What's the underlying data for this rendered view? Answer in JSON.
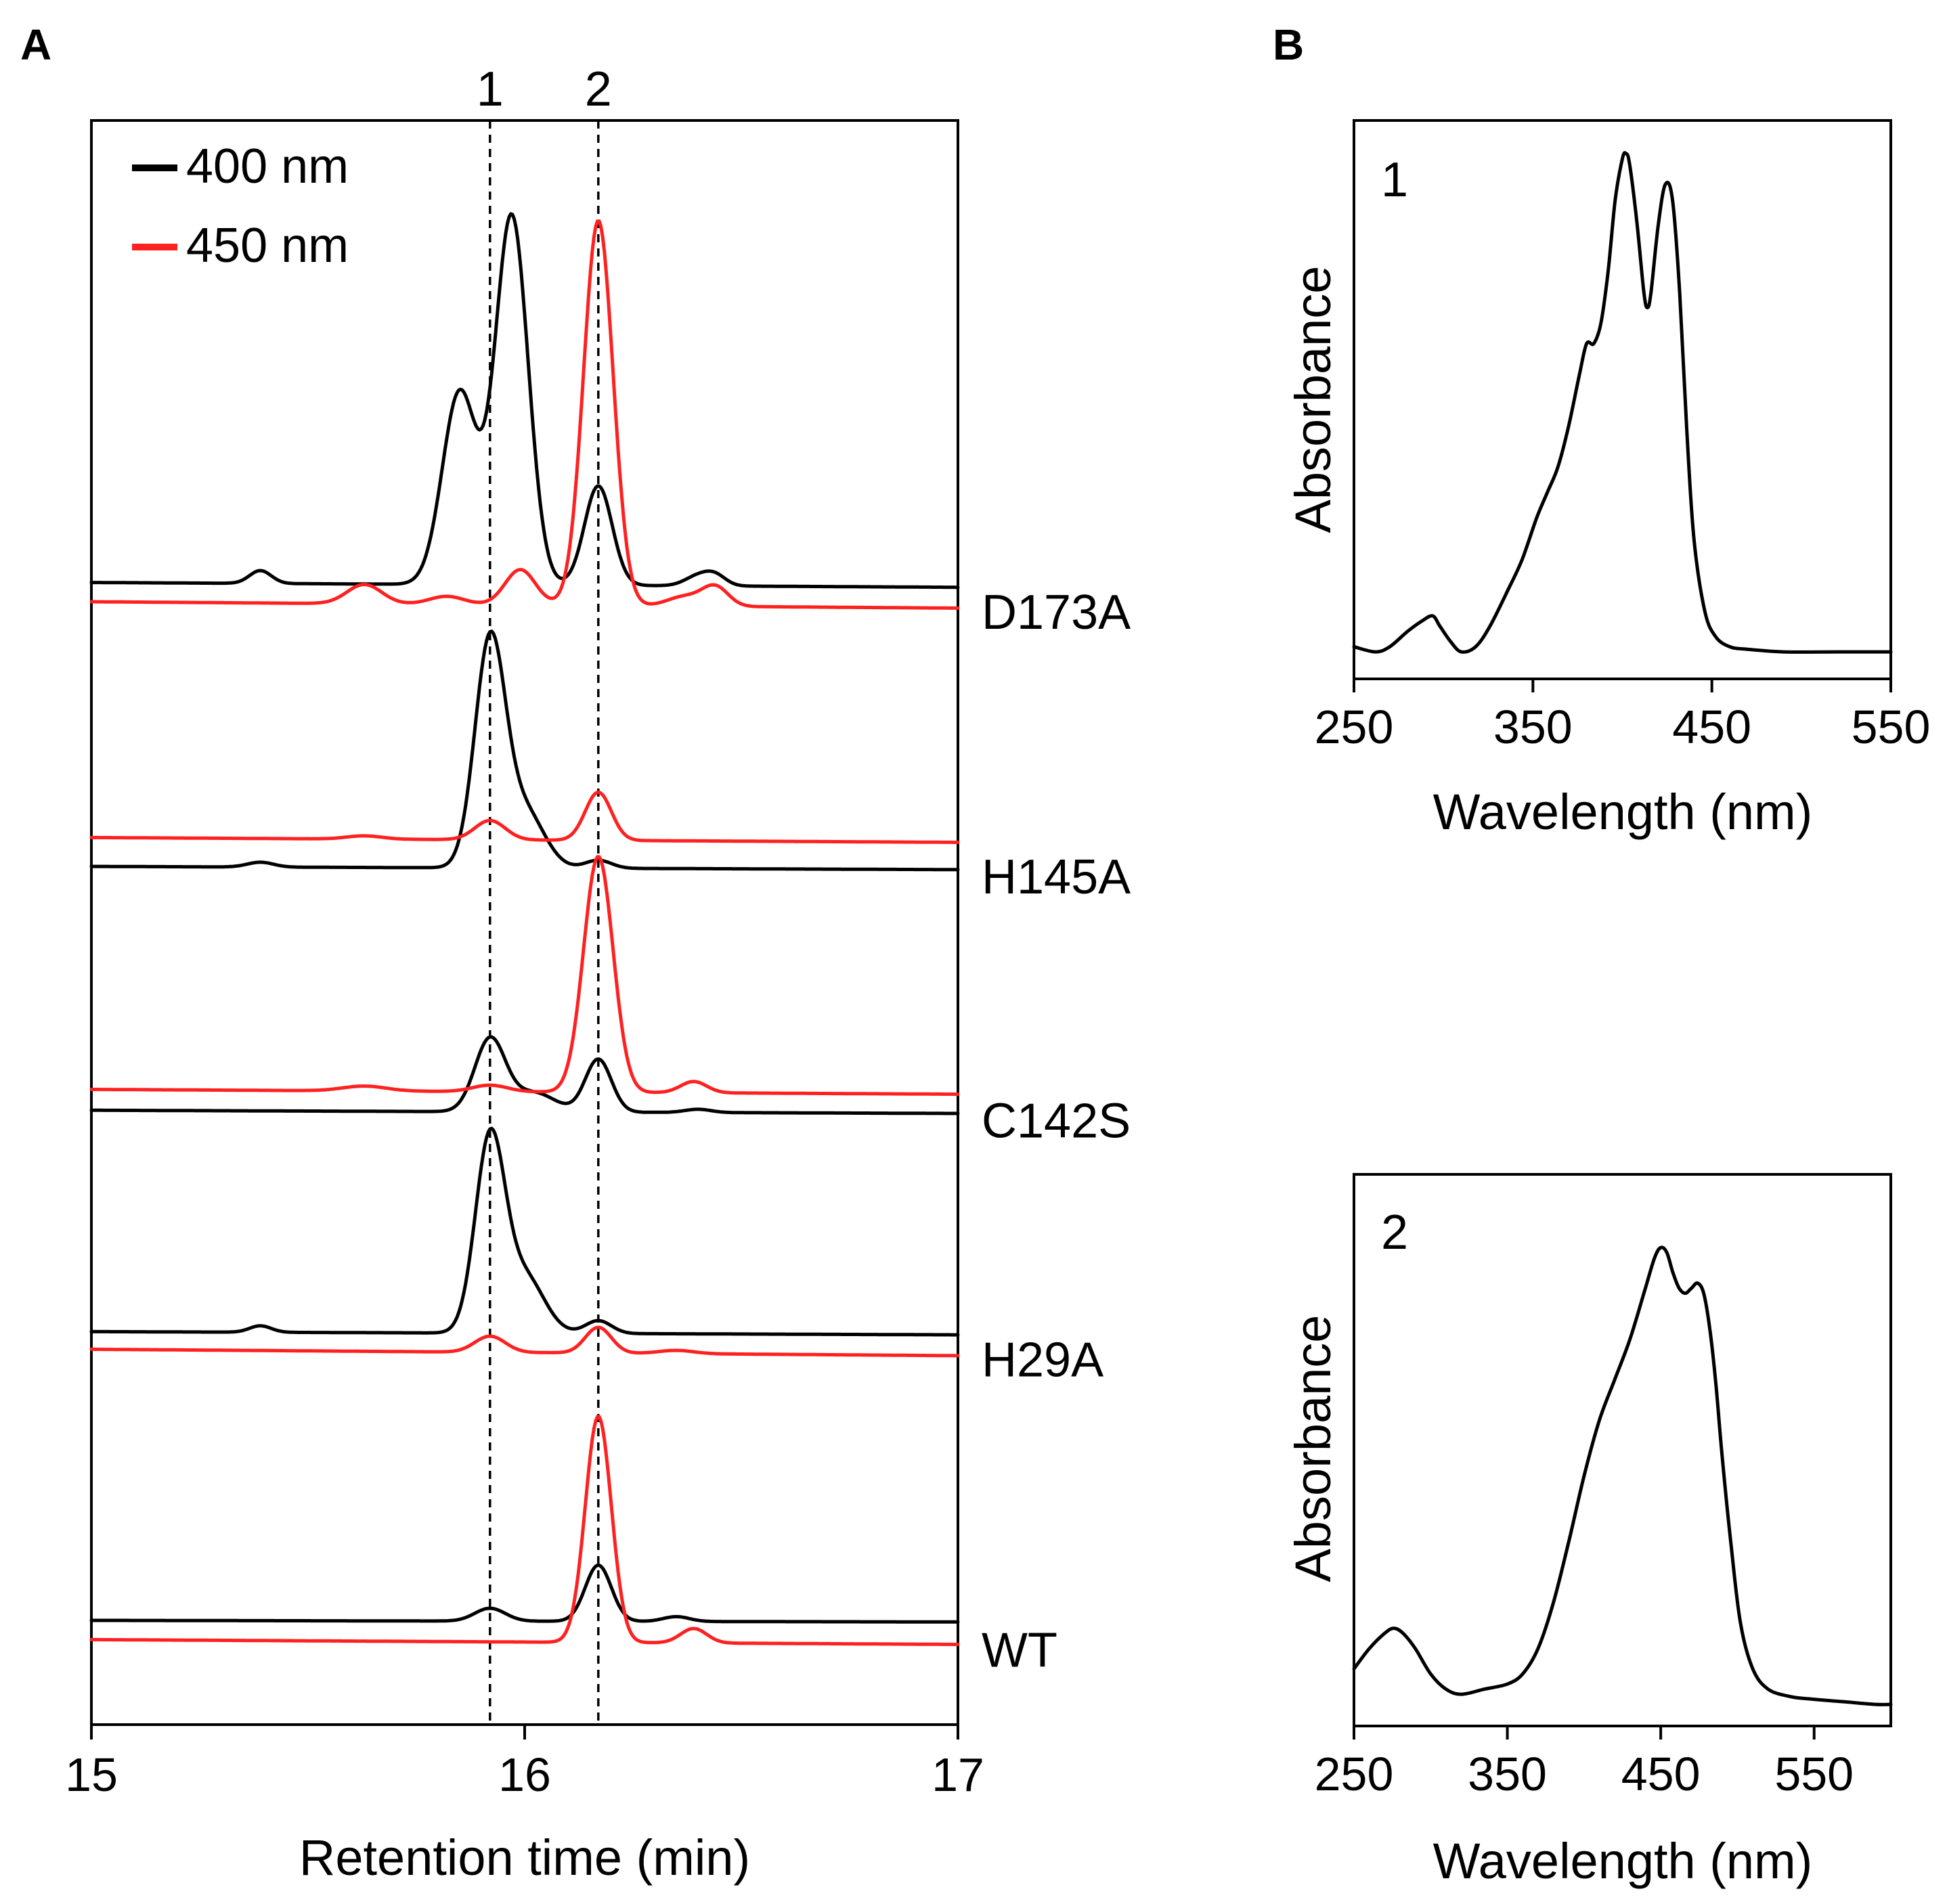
{
  "colors": {
    "nm400": "#000000",
    "nm450": "#ff2020"
  },
  "chart_data": [
    {
      "panel": "A",
      "type": "line",
      "xlabel": "Retention time (min)",
      "ylabel": "",
      "xlim": [
        15,
        17
      ],
      "xticks": [
        15,
        16,
        17
      ],
      "xtick_labels": [
        "15",
        "16",
        "17"
      ],
      "grid": false,
      "legend": {
        "placement": "top-left",
        "entries": [
          {
            "label": "400 nm",
            "color_key": "nm400"
          },
          {
            "label": "450 nm",
            "color_key": "nm450"
          }
        ]
      },
      "reference_lines": [
        {
          "label": "1",
          "x": 15.92
        },
        {
          "label": "2",
          "x": 16.17
        }
      ],
      "samples": [
        {
          "name": "D173A",
          "series": [
            {
              "name": "400 nm",
              "color_key": "nm400",
              "baseline": 0.712,
              "drift": -0.003,
              "peaks": [
                [
                  15.39,
                  0.008,
                  0.025
                ],
                [
                  15.85,
                  0.12,
                  0.04
                ],
                [
                  15.97,
                  0.23,
                  0.038
                ],
                [
                  16.17,
                  0.062,
                  0.032
                ],
                [
                  16.4,
                  0.006,
                  0.03
                ],
                [
                  16.44,
                  0.006,
                  0.025
                ]
              ]
            },
            {
              "name": "450 nm",
              "color_key": "nm450",
              "baseline": 0.7,
              "drift": -0.004,
              "peaks": [
                [
                  15.63,
                  0.012,
                  0.04
                ],
                [
                  15.82,
                  0.005,
                  0.04
                ],
                [
                  15.99,
                  0.022,
                  0.035
                ],
                [
                  16.17,
                  0.24,
                  0.034
                ],
                [
                  16.37,
                  0.006,
                  0.04
                ],
                [
                  16.44,
                  0.012,
                  0.03
                ]
              ]
            }
          ]
        },
        {
          "name": "H145A",
          "series": [
            {
              "name": "400 nm",
              "color_key": "nm400",
              "baseline": 0.535,
              "drift": -0.002,
              "peaks": [
                [
                  15.39,
                  0.003,
                  0.03
                ],
                [
                  15.92,
                  0.14,
                  0.035
                ],
                [
                  16.0,
                  0.035,
                  0.045
                ],
                [
                  16.17,
                  0.005,
                  0.03
                ]
              ]
            },
            {
              "name": "450 nm",
              "color_key": "nm450",
              "baseline": 0.553,
              "drift": -0.003,
              "peaks": [
                [
                  15.63,
                  0.002,
                  0.04
                ],
                [
                  15.92,
                  0.012,
                  0.035
                ],
                [
                  16.17,
                  0.03,
                  0.03
                ]
              ]
            }
          ]
        },
        {
          "name": "C142S",
          "series": [
            {
              "name": "400 nm",
              "color_key": "nm400",
              "baseline": 0.383,
              "drift": -0.002,
              "peaks": [
                [
                  15.92,
                  0.045,
                  0.035
                ],
                [
                  16.02,
                  0.012,
                  0.05
                ],
                [
                  16.17,
                  0.033,
                  0.03
                ],
                [
                  16.4,
                  0.002,
                  0.03
                ]
              ]
            },
            {
              "name": "450 nm",
              "color_key": "nm450",
              "baseline": 0.396,
              "drift": -0.003,
              "peaks": [
                [
                  15.63,
                  0.003,
                  0.05
                ],
                [
                  15.92,
                  0.004,
                  0.04
                ],
                [
                  16.17,
                  0.147,
                  0.034
                ],
                [
                  16.39,
                  0.007,
                  0.03
                ]
              ]
            }
          ]
        },
        {
          "name": "H29A",
          "series": [
            {
              "name": "400 nm",
              "color_key": "nm400",
              "baseline": 0.245,
              "drift": -0.002,
              "peaks": [
                [
                  15.39,
                  0.004,
                  0.025
                ],
                [
                  15.92,
                  0.12,
                  0.034
                ],
                [
                  16.0,
                  0.035,
                  0.045
                ],
                [
                  16.17,
                  0.008,
                  0.03
                ]
              ]
            },
            {
              "name": "450 nm",
              "color_key": "nm450",
              "baseline": 0.234,
              "drift": -0.004,
              "peaks": [
                [
                  15.92,
                  0.01,
                  0.035
                ],
                [
                  16.17,
                  0.016,
                  0.03
                ],
                [
                  16.35,
                  0.002,
                  0.04
                ]
              ]
            }
          ]
        },
        {
          "name": "WT",
          "series": [
            {
              "name": "400 nm",
              "color_key": "nm400",
              "baseline": 0.065,
              "drift": -0.001,
              "peaks": [
                [
                  15.92,
                  0.008,
                  0.035
                ],
                [
                  16.17,
                  0.035,
                  0.03
                ],
                [
                  16.35,
                  0.003,
                  0.03
                ]
              ]
            },
            {
              "name": "450 nm",
              "color_key": "nm450",
              "baseline": 0.053,
              "drift": -0.003,
              "peaks": [
                [
                  16.17,
                  0.141,
                  0.03
                ],
                [
                  16.39,
                  0.009,
                  0.03
                ]
              ]
            }
          ]
        }
      ]
    },
    {
      "panel": "B",
      "inset_label": "1",
      "type": "line",
      "xlabel": "Wavelength (nm)",
      "ylabel": "Absorbance",
      "xlim": [
        250,
        550
      ],
      "xticks": [
        250,
        350,
        450,
        550
      ],
      "xtick_labels": [
        "250",
        "350",
        "450",
        "550"
      ],
      "ylim": [
        0,
        1
      ],
      "x": [
        250,
        262,
        270,
        280,
        288,
        294,
        298,
        304,
        310,
        318,
        326,
        336,
        344,
        352,
        358,
        364,
        370,
        376,
        380,
        384,
        388,
        392,
        396,
        400,
        402,
        404,
        408,
        412,
        414,
        416,
        420,
        424,
        428,
        432,
        436,
        440,
        446,
        452,
        460,
        470,
        490,
        520,
        550
      ],
      "y": [
        0.03,
        0.02,
        0.03,
        0.06,
        0.08,
        0.09,
        0.07,
        0.04,
        0.02,
        0.03,
        0.07,
        0.14,
        0.2,
        0.28,
        0.33,
        0.38,
        0.46,
        0.56,
        0.62,
        0.62,
        0.66,
        0.76,
        0.9,
        0.98,
        0.99,
        0.97,
        0.86,
        0.72,
        0.69,
        0.72,
        0.85,
        0.93,
        0.9,
        0.72,
        0.45,
        0.24,
        0.1,
        0.05,
        0.03,
        0.025,
        0.02,
        0.02,
        0.02
      ]
    },
    {
      "panel": "B",
      "inset_label": "2",
      "type": "line",
      "xlabel": "Wavelength (nm)",
      "ylabel": "Absorbance",
      "xlim": [
        250,
        600
      ],
      "xticks": [
        250,
        350,
        450,
        550
      ],
      "xtick_labels": [
        "250",
        "350",
        "450",
        "550"
      ],
      "ylim": [
        0,
        1
      ],
      "x": [
        250,
        260,
        270,
        276,
        282,
        290,
        300,
        310,
        320,
        335,
        350,
        360,
        370,
        380,
        390,
        400,
        410,
        420,
        430,
        440,
        446,
        450,
        454,
        458,
        462,
        466,
        470,
        474,
        478,
        482,
        486,
        490,
        496,
        502,
        510,
        520,
        535,
        550,
        570,
        590,
        600
      ],
      "y": [
        0.08,
        0.12,
        0.15,
        0.16,
        0.15,
        0.12,
        0.07,
        0.04,
        0.03,
        0.04,
        0.05,
        0.07,
        0.12,
        0.21,
        0.33,
        0.46,
        0.57,
        0.65,
        0.73,
        0.83,
        0.89,
        0.91,
        0.9,
        0.86,
        0.83,
        0.82,
        0.83,
        0.84,
        0.82,
        0.75,
        0.64,
        0.5,
        0.32,
        0.17,
        0.08,
        0.04,
        0.025,
        0.02,
        0.015,
        0.01,
        0.01
      ]
    }
  ]
}
